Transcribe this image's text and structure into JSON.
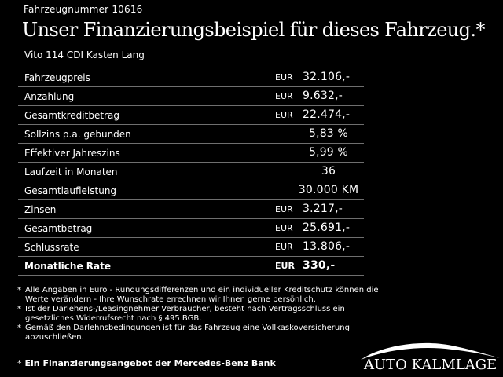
{
  "header": {
    "vehicle_number": "Fahrzeugnummer 10616",
    "headline": "Unser Finanzierungsbeispiel für dieses Fahrzeug.*",
    "model": "Vito 114 CDI Kasten Lang"
  },
  "table": {
    "rows": [
      {
        "label": "Fahrzeugpreis",
        "currency": "EUR",
        "value": "32.106,-"
      },
      {
        "label": "Anzahlung",
        "currency": "EUR",
        "value": "9.632,-"
      },
      {
        "label": "Gesamtkreditbetrag",
        "currency": "EUR",
        "value": "22.474,-"
      },
      {
        "label": "Sollzins p.a. gebunden",
        "currency": "",
        "value": "5,83 %"
      },
      {
        "label": "Effektiver Jahreszins",
        "currency": "",
        "value": "5,99 %"
      },
      {
        "label": "Laufzeit in Monaten",
        "currency": "",
        "value": "36"
      },
      {
        "label": "Gesamtlaufleistung",
        "currency": "",
        "value": "30.000 KM"
      },
      {
        "label": "Zinsen",
        "currency": "EUR",
        "value": "3.217,-"
      },
      {
        "label": "Gesamtbetrag",
        "currency": "EUR",
        "value": "25.691,-"
      },
      {
        "label": "Schlussrate",
        "currency": "EUR",
        "value": "13.806,-"
      },
      {
        "label": "Monatliche Rate",
        "currency": "EUR",
        "value": "330,-"
      }
    ]
  },
  "notes": [
    {
      "marker": "*",
      "text": "Alle Angaben in Euro - Rundungsdifferenzen und ein individueller Kreditschutz können die Werte verändern - Ihre Wunschrate errechnen wir Ihnen gerne persönlich."
    },
    {
      "marker": "*",
      "text": "Ist der Darlehens-/Leasingnehmer Verbraucher, besteht nach Vertragsschluss ein gesetzliches Widerrufsrecht nach § 495 BGB."
    },
    {
      "marker": "*",
      "text": "Gemäß den Darlehnsbedingungen ist für das Fahrzeug eine Vollkaskoversicherung abzuschließen."
    }
  ],
  "offer": {
    "marker": "*",
    "text": "Ein Finanzierungsangebot der Mercedes-Benz Bank"
  },
  "brand": {
    "name": "AUTO KALMLAGE",
    "icon": "car-silhouette-arc-icon"
  },
  "colors": {
    "background": "#000000",
    "text": "#ffffff",
    "rule": "#6f6f6f"
  }
}
